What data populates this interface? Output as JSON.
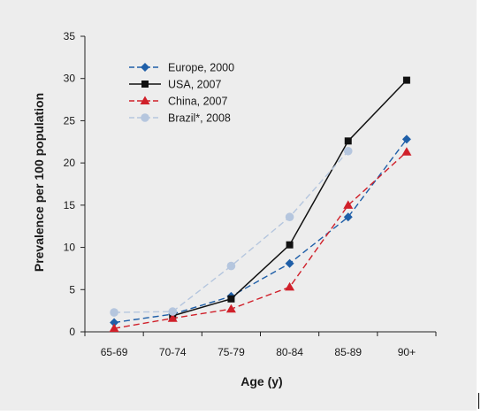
{
  "chart_data": {
    "type": "line",
    "title": "",
    "xlabel": "Age (y)",
    "ylabel": "Prevalence per 100 population",
    "categories": [
      "65-69",
      "70-74",
      "75-79",
      "80-84",
      "85-89",
      "90+"
    ],
    "ylim": [
      0,
      35
    ],
    "yticks": [
      0,
      5,
      10,
      15,
      20,
      25,
      30,
      35
    ],
    "grid": false,
    "legend_position": "top-left",
    "series": [
      {
        "name": "Europe, 2000",
        "values": [
          1.1,
          2.1,
          4.2,
          8.1,
          13.6,
          22.8
        ],
        "color": "#1f5fa8",
        "marker": "diamond",
        "line_style": "dashed"
      },
      {
        "name": "USA, 2007",
        "values": [
          null,
          1.9,
          3.9,
          10.3,
          22.6,
          29.8
        ],
        "color": "#111111",
        "marker": "square",
        "line_style": "solid"
      },
      {
        "name": "China, 2007",
        "values": [
          0.4,
          1.6,
          2.7,
          5.3,
          15.0,
          21.3
        ],
        "color": "#d0202a",
        "marker": "triangle",
        "line_style": "dashed"
      },
      {
        "name": "Brazil*, 2008",
        "values": [
          2.3,
          2.4,
          7.8,
          13.6,
          21.4,
          null
        ],
        "color": "#b5c6de",
        "marker": "circle",
        "line_style": "dashed"
      }
    ]
  }
}
